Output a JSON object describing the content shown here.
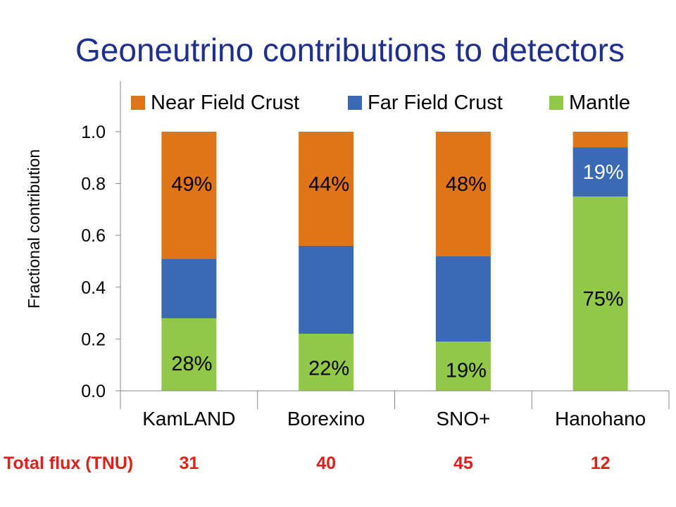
{
  "slide": {
    "title": "Geoneutrino contributions to detectors",
    "colors": {
      "title": "#1f2f8f",
      "flux": "#e0201b",
      "axis": "#888888"
    }
  },
  "chart_data": {
    "type": "bar",
    "stacked": true,
    "categories": [
      "KamLAND",
      "Borexino",
      "SNO+",
      "Hanohano"
    ],
    "series": [
      {
        "name": "Mantle",
        "color": "#92c84a",
        "values": [
          0.28,
          0.22,
          0.19,
          0.75
        ],
        "labels": [
          "28%",
          "22%",
          "19%",
          "75%"
        ]
      },
      {
        "name": "Far Field Crust",
        "color": "#3a6ab4",
        "values": [
          0.23,
          0.34,
          0.33,
          0.19
        ],
        "labels": [
          "",
          "",
          "",
          "19%"
        ]
      },
      {
        "name": "Near Field Crust",
        "color": "#e07518",
        "values": [
          0.49,
          0.44,
          0.48,
          0.06
        ],
        "labels": [
          "49%",
          "44%",
          "48%",
          ""
        ]
      }
    ],
    "legend_order": [
      "Near Field Crust",
      "Far Field Crust",
      "Mantle"
    ],
    "legend_placement": "top",
    "ylabel": "Fractional contribution",
    "xlabel": "",
    "ylim": [
      0,
      1.0
    ],
    "yticks": [
      "0.0",
      "0.2",
      "0.4",
      "0.6",
      "0.8",
      "1.0"
    ],
    "grid": false,
    "extra_row": {
      "label": "Total flux (TNU)",
      "values": [
        "31",
        "40",
        "45",
        "12"
      ]
    }
  }
}
